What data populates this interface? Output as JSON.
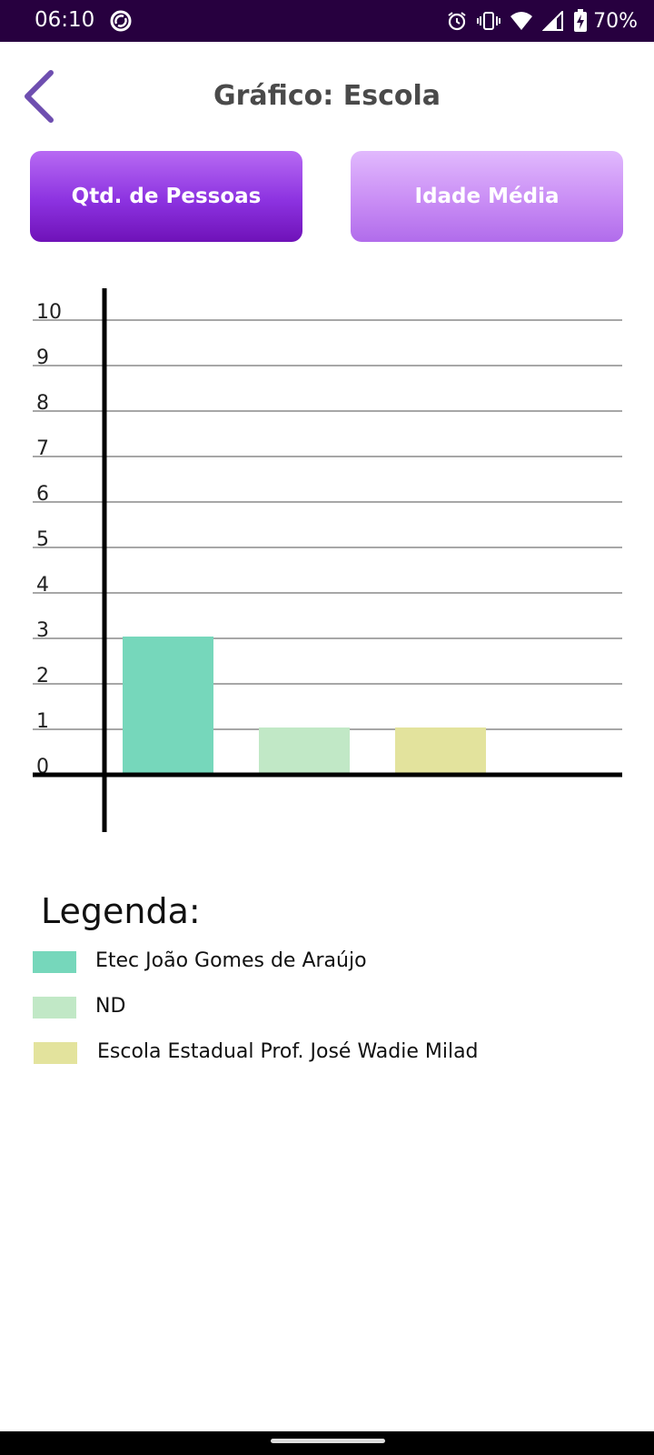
{
  "status_bar": {
    "time": "06:10",
    "battery_percent": "70%",
    "icons": [
      "sync-icon",
      "alarm-icon",
      "vibrate-icon",
      "wifi-icon",
      "signal-icon",
      "battery-charging-icon"
    ]
  },
  "header": {
    "title": "Gráfico: Escola",
    "back_icon": "chevron-left-icon"
  },
  "tabs": [
    {
      "label": "Qtd. de Pessoas",
      "selected": true
    },
    {
      "label": "Idade Média",
      "selected": false
    }
  ],
  "chart_data": {
    "type": "bar",
    "categories": [
      "Etec João Gomes de Araújo",
      "ND",
      "Escola Estadual Prof. José Wadie Milad"
    ],
    "values": [
      3,
      1,
      1
    ],
    "colors": [
      "#76d7bb",
      "#c1e8c6",
      "#e3e39d"
    ],
    "yticks": [
      "0",
      "1",
      "2",
      "3",
      "4",
      "5",
      "6",
      "7",
      "8",
      "9",
      "10"
    ],
    "ylim": [
      0,
      10
    ],
    "grid": true,
    "legend_position": "bottom"
  },
  "legend": {
    "title": "Legenda:",
    "items": [
      {
        "label": "Etec João Gomes de Araújo",
        "color": "#76d7bb"
      },
      {
        "label": "ND",
        "color": "#c1e8c6"
      },
      {
        "label": "Escola Estadual Prof. José Wadie Milad",
        "color": "#e3e39d"
      }
    ]
  },
  "colors": {
    "status_bar": "#27003f",
    "accent": "#7a3fb3",
    "title_text": "#4a4a4a"
  }
}
